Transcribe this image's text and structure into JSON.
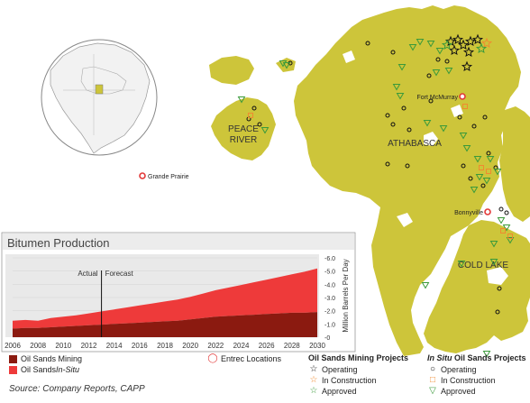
{
  "regions": {
    "peace_river": [
      "PEACE",
      "RIVER"
    ],
    "athabasca": "ATHABASCA",
    "cold_lake": "COLD LAKE"
  },
  "cities": {
    "fort_mcmurray": "Fort McMurray",
    "grande_prairie": "Grande Prairie",
    "bonnyville": "Bonnyville"
  },
  "colors": {
    "land": "#cdc53a",
    "mining": "#8b1a10",
    "insitu": "#ee3a3a",
    "operating": "#111111",
    "construction": "#f08a30",
    "approved": "#3a9a3a",
    "entrec": "#e23838"
  },
  "chart_data": {
    "type": "area",
    "title": "Bitumen Production",
    "ylabel": "Million Barrels Per Day",
    "x": [
      2006,
      2007,
      2008,
      2009,
      2010,
      2011,
      2012,
      2013,
      2014,
      2015,
      2016,
      2017,
      2018,
      2019,
      2020,
      2021,
      2022,
      2023,
      2024,
      2025,
      2026,
      2027,
      2028,
      2029,
      2030
    ],
    "xticks": [
      "2006",
      "2008",
      "2010",
      "2012",
      "2014",
      "2016",
      "2018",
      "2020",
      "2022",
      "2024",
      "2026",
      "2028",
      "2030"
    ],
    "yticks": [
      "-6.0",
      "-5.0",
      "-4.0",
      "-3.0",
      "-2.0",
      "-1.0",
      "-0"
    ],
    "ylim": [
      0,
      6
    ],
    "xlim": [
      2006,
      2030
    ],
    "divider_x": 2013,
    "divider_labels": {
      "left": "Actual",
      "right": "Forecast"
    },
    "series": [
      {
        "name": "Oil Sands Mining",
        "values": [
          0.65,
          0.7,
          0.7,
          0.75,
          0.8,
          0.85,
          0.9,
          0.95,
          1.0,
          1.05,
          1.1,
          1.15,
          1.2,
          1.25,
          1.35,
          1.45,
          1.55,
          1.6,
          1.65,
          1.7,
          1.75,
          1.8,
          1.85,
          1.85,
          1.9
        ]
      },
      {
        "name": "Oil Sands In-Situ",
        "values": [
          0.6,
          0.6,
          0.55,
          0.7,
          0.75,
          0.8,
          0.9,
          1.0,
          1.1,
          1.2,
          1.3,
          1.4,
          1.5,
          1.6,
          1.7,
          1.85,
          2.0,
          2.15,
          2.3,
          2.45,
          2.6,
          2.75,
          2.9,
          3.1,
          3.3
        ]
      }
    ]
  },
  "legend": {
    "mining": "Oil Sands Mining",
    "insitu_prefix": "Oil Sands ",
    "insitu_italic": "In-Situ",
    "entrec": "Entrec Locations",
    "mining_projects_title": "Oil Sands Mining Projects",
    "insitu_projects_title_italic": "In Situ",
    "insitu_projects_title_rest": " Oil Sands Projects",
    "operating": "Operating",
    "in_construction": "In Construction",
    "approved": "Approved"
  },
  "source": "Source: Company Reports, CAPP"
}
